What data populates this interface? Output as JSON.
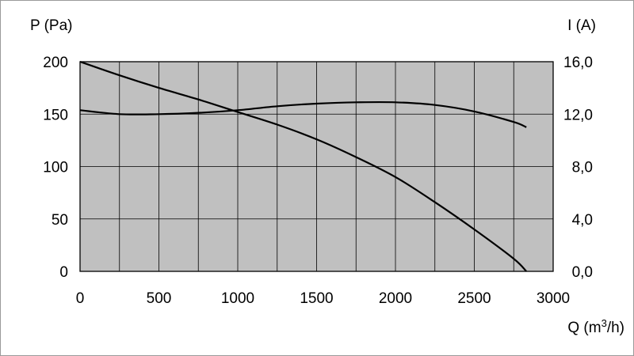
{
  "chart_data": {
    "type": "line",
    "ylabel_left": "P (Pa)",
    "ylabel_right": "I (A)",
    "xlabel": "Q (m³/h)",
    "xlabel_parts": {
      "before": "Q (m",
      "sup": "3",
      "after": "/h)"
    },
    "xlim": [
      0,
      3000
    ],
    "ylim_left": [
      0,
      200
    ],
    "ylim_right": [
      0,
      16
    ],
    "x_ticks": [
      "0",
      "500",
      "1000",
      "1500",
      "2000",
      "2500",
      "3000"
    ],
    "y_left_ticks": [
      "0",
      "50",
      "100",
      "150",
      "200"
    ],
    "y_right_ticks": [
      "0,0",
      "4,0",
      "8,0",
      "12,0",
      "16,0"
    ],
    "grid": true,
    "plot_background": "#c0c0c0",
    "line_color": "#000000",
    "series": [
      {
        "axis": "left",
        "x": [
          0,
          250,
          500,
          750,
          1000,
          1250,
          1500,
          1750,
          2000,
          2250,
          2500,
          2750,
          2830
        ],
        "y": [
          200,
          187,
          175,
          164,
          152,
          140,
          126,
          109,
          90,
          66,
          40,
          12,
          0
        ]
      },
      {
        "axis": "right",
        "x": [
          0,
          250,
          500,
          750,
          1000,
          1250,
          1500,
          1750,
          2000,
          2250,
          2500,
          2750,
          2830
        ],
        "y": [
          12.3,
          12.0,
          12.0,
          12.1,
          12.3,
          12.6,
          12.8,
          12.9,
          12.9,
          12.7,
          12.2,
          11.4,
          11.0
        ]
      }
    ]
  }
}
